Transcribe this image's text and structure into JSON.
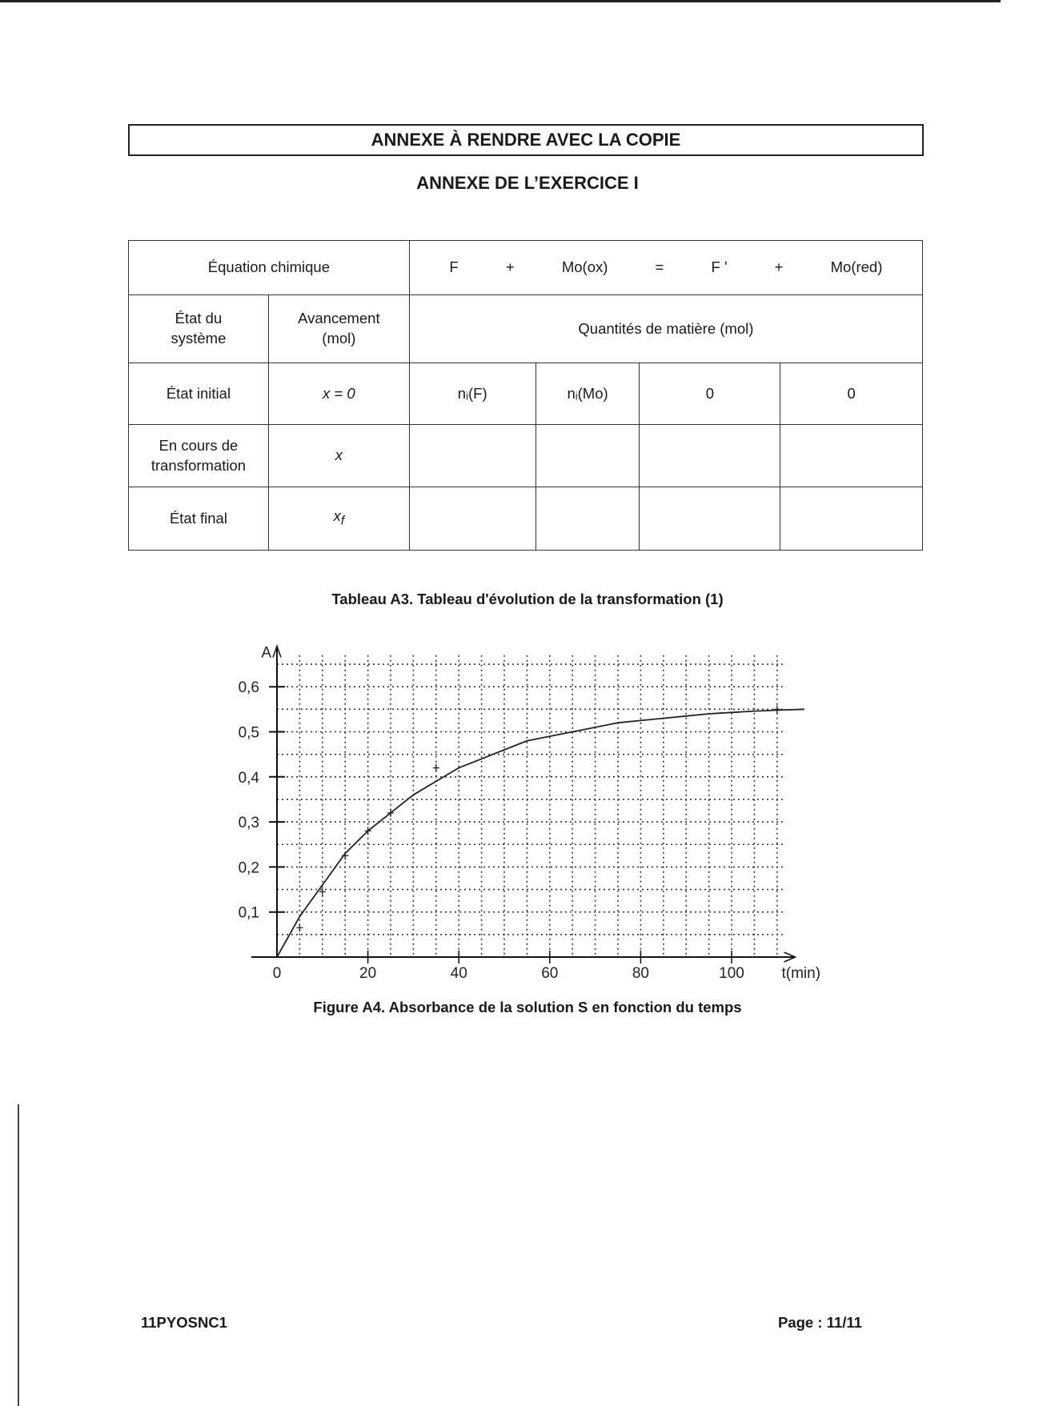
{
  "header": {
    "annex_title": "ANNEXE À RENDRE AVEC LA COPIE",
    "exercise_title": "ANNEXE DE L’EXERCICE I"
  },
  "table": {
    "equation_label": "Équation chimique",
    "equation": [
      "F",
      "+",
      "Mo(ox)",
      "=",
      "F '",
      "+",
      "Mo(red)"
    ],
    "state_header": "État du système",
    "advancement_header": "Avancement (mol)",
    "quantities_header": "Quantités de matière (mol)",
    "rows": [
      {
        "state": "État initial",
        "advancement": "x = 0",
        "cells": [
          "nᵢ(F)",
          "nᵢ(Mo)",
          "0",
          "0"
        ]
      },
      {
        "state": "En cours de transformation",
        "advancement": "x",
        "cells": [
          "",
          "",
          "",
          ""
        ]
      },
      {
        "state": "État final",
        "advancement": "x_f",
        "cells": [
          "",
          "",
          "",
          ""
        ]
      }
    ],
    "caption": "Tableau A3. Tableau d'évolution de la transformation (1)"
  },
  "chart_data": {
    "type": "line",
    "title": "",
    "caption": "Figure A4. Absorbance de la solution S en fonction du temps",
    "xlabel": "t(min)",
    "ylabel": "A",
    "xlim": [
      0,
      112
    ],
    "ylim": [
      0,
      0.67
    ],
    "x_ticks": [
      0,
      20,
      40,
      60,
      80,
      100
    ],
    "x_tick_labels": [
      "0",
      "20",
      "40",
      "60",
      "80",
      "100"
    ],
    "y_ticks": [
      0.1,
      0.2,
      0.3,
      0.4,
      0.5,
      0.6
    ],
    "y_tick_labels": [
      "0,1",
      "0,2",
      "0,3",
      "0,4",
      "0,5",
      "0,6"
    ],
    "grid": {
      "on": true,
      "style": "dotted",
      "x_step": 5,
      "y_step": 0.05
    },
    "points": {
      "x": [
        5,
        10,
        15,
        20,
        25,
        35,
        110
      ],
      "y": [
        0.065,
        0.145,
        0.225,
        0.28,
        0.32,
        0.42,
        0.55
      ]
    },
    "curve": {
      "x": [
        0,
        5,
        10,
        15,
        20,
        25,
        30,
        35,
        40,
        45,
        50,
        55,
        60,
        65,
        70,
        75,
        80,
        85,
        90,
        95,
        100,
        105,
        110,
        116
      ],
      "y": [
        0,
        0.09,
        0.16,
        0.23,
        0.28,
        0.32,
        0.36,
        0.39,
        0.42,
        0.44,
        0.46,
        0.48,
        0.49,
        0.5,
        0.51,
        0.52,
        0.525,
        0.53,
        0.535,
        0.54,
        0.543,
        0.546,
        0.548,
        0.55
      ]
    }
  },
  "footer": {
    "code": "11PYOSNC1",
    "page": "Page : 11/11"
  }
}
